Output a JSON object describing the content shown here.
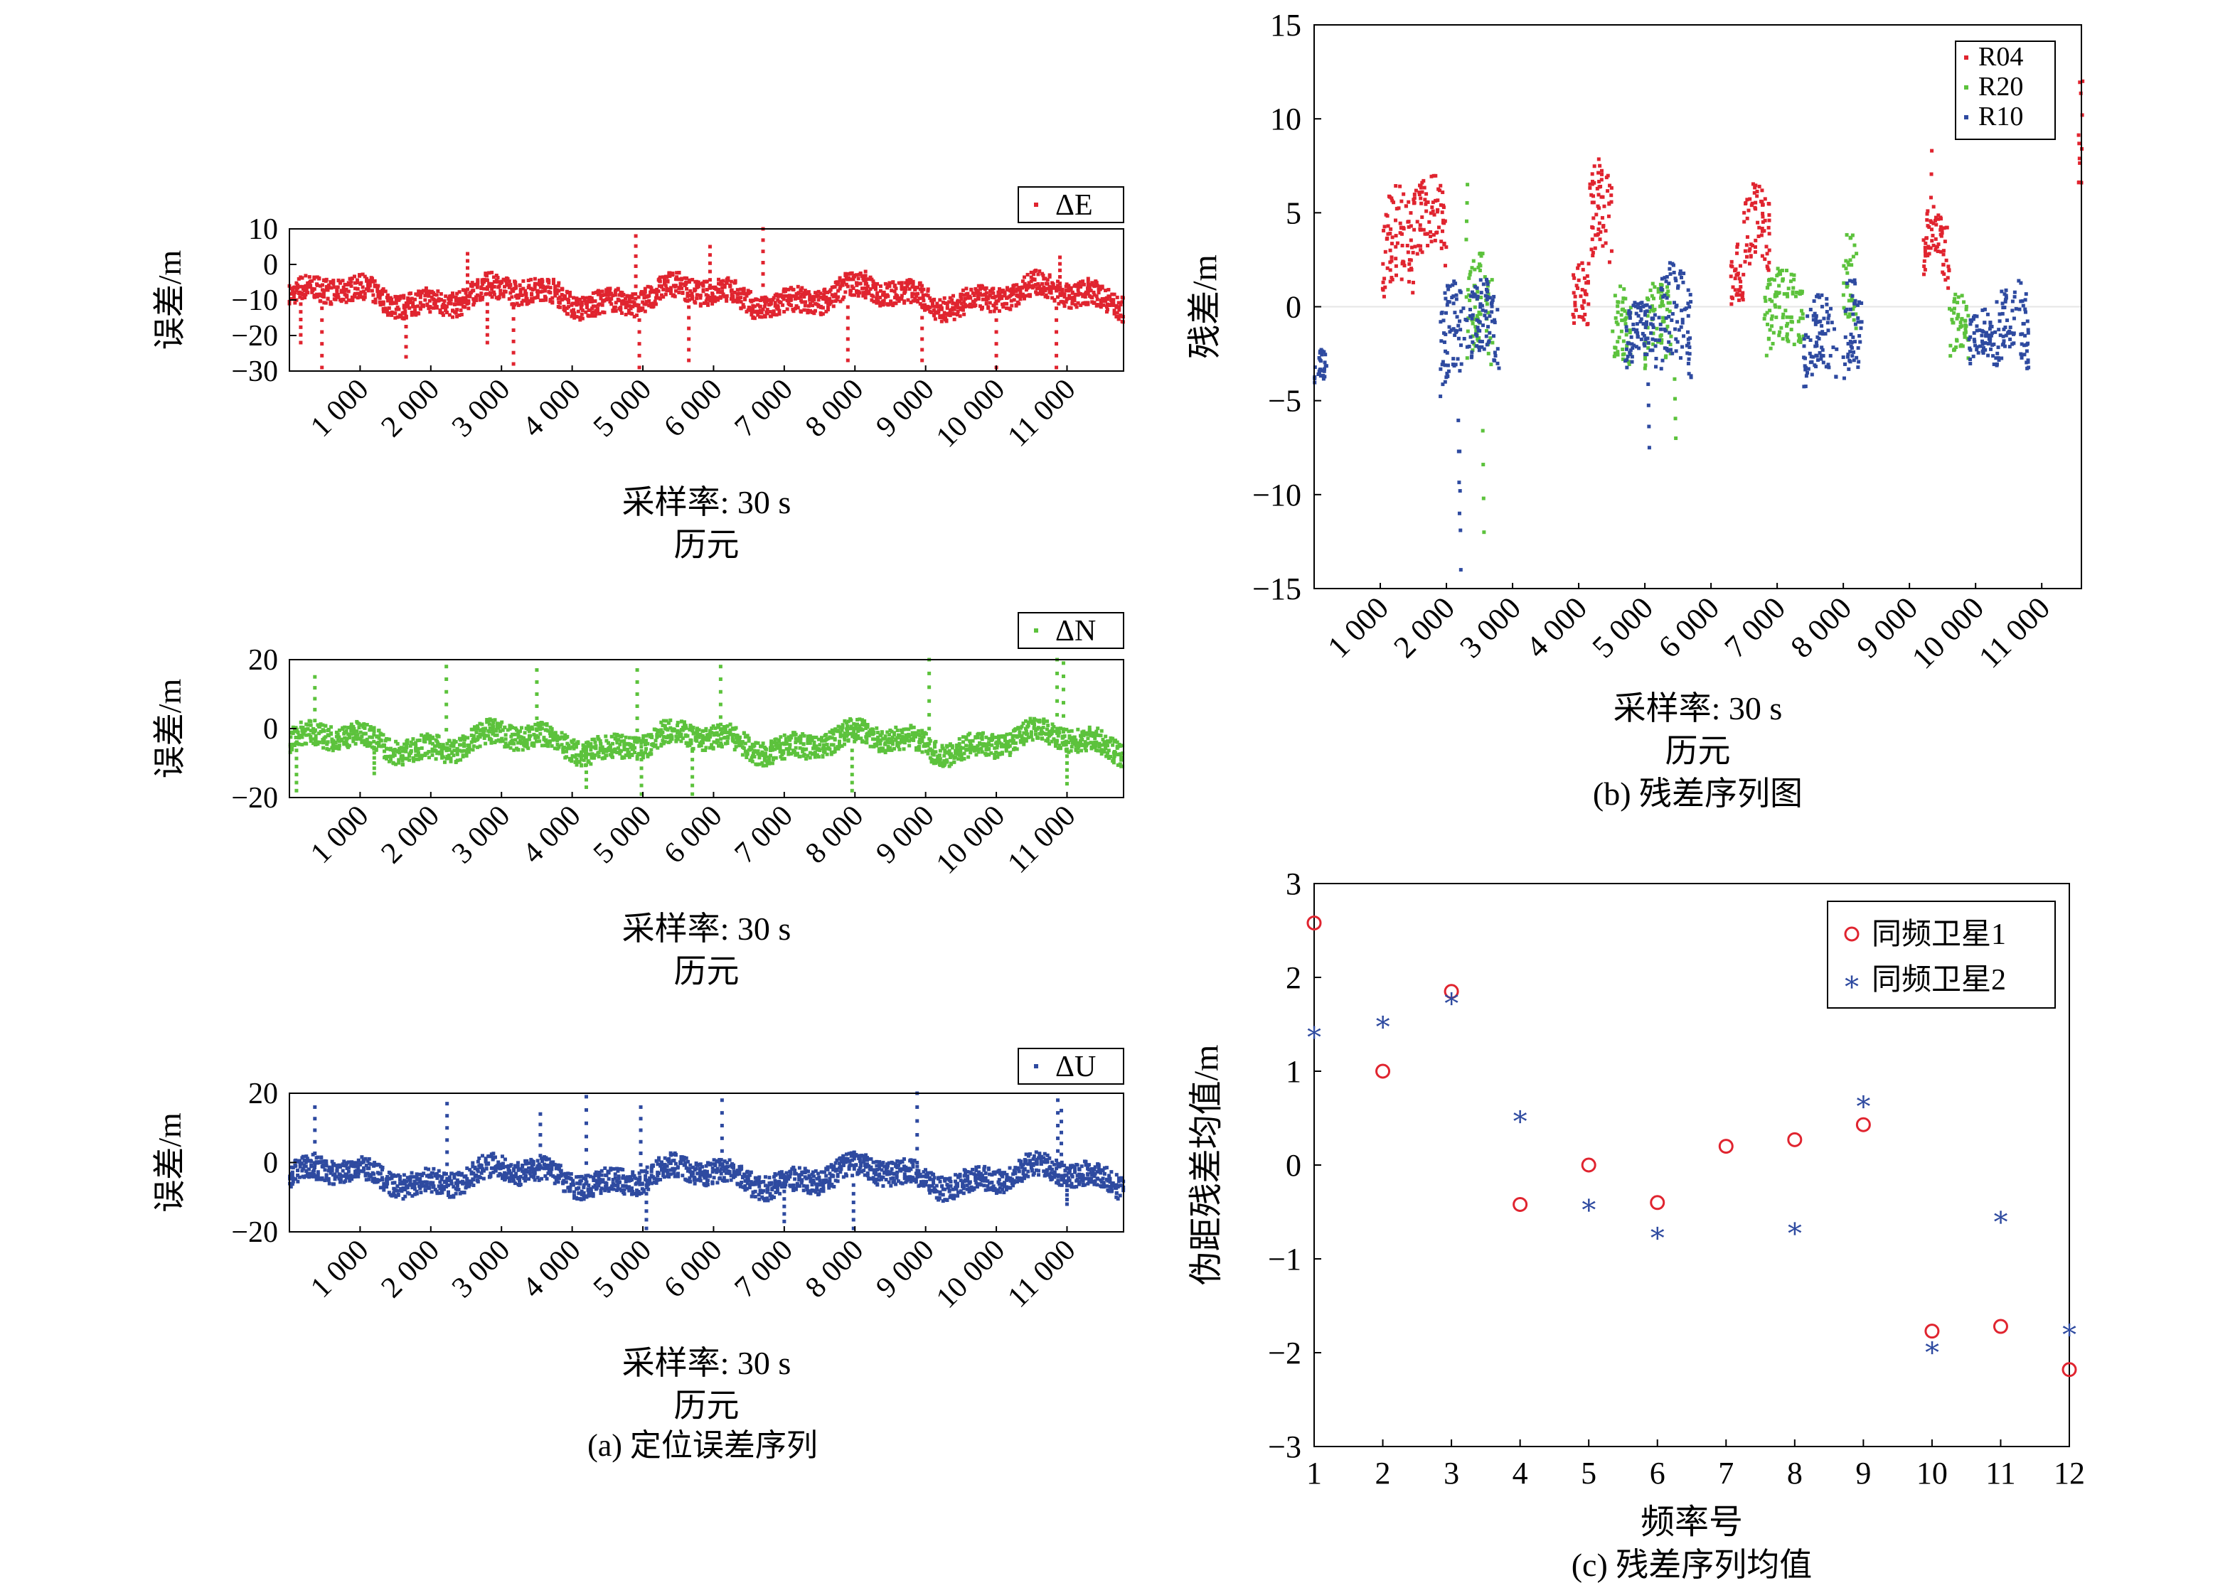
{
  "chart_data": [
    {
      "id": "dE",
      "type": "scatter",
      "ylabel": "误差/m",
      "xlabel_line1": "采样率: 30 s",
      "xlabel_line2": "历元",
      "xtick_labels": [
        "1 000",
        "2 000",
        "3 000",
        "4 000",
        "5 000",
        "6 000",
        "7 000",
        "8 000",
        "9 000",
        "10 000",
        "11 000"
      ],
      "ytick_labels": [
        "10",
        "0",
        "−10",
        "−20",
        "−30"
      ],
      "xlim": [
        0,
        11800
      ],
      "ylim": [
        -30,
        10
      ],
      "series": [
        {
          "name": "ΔE",
          "color": "#e0242f",
          "summary": {
            "baseline": -9,
            "spread": 3.5,
            "points": 700
          },
          "spikes": [
            [
              160,
              -22
            ],
            [
              460,
              -29
            ],
            [
              1650,
              -26
            ],
            [
              2520,
              3
            ],
            [
              2800,
              -22
            ],
            [
              4900,
              8
            ],
            [
              4950,
              -29
            ],
            [
              5650,
              -27
            ],
            [
              5950,
              5
            ],
            [
              6700,
              10
            ],
            [
              7900,
              -27
            ],
            [
              8150,
              -2
            ],
            [
              8950,
              -27
            ],
            [
              10000,
              -29
            ],
            [
              10850,
              -29
            ],
            [
              10900,
              2
            ],
            [
              11300,
              -4
            ],
            [
              3170,
              -28
            ]
          ]
        }
      ]
    },
    {
      "id": "dN",
      "type": "scatter",
      "ylabel": "误差/m",
      "xlabel_line1": "采样率: 30 s",
      "xlabel_line2": "历元",
      "xtick_labels": [
        "1 000",
        "2 000",
        "3 000",
        "4 000",
        "5 000",
        "6 000",
        "7 000",
        "8 000",
        "9 000",
        "10 000",
        "11 000"
      ],
      "ytick_labels": [
        "20",
        "0",
        "−20"
      ],
      "xlim": [
        0,
        11800
      ],
      "ylim": [
        -20,
        20
      ],
      "series": [
        {
          "name": "ΔN",
          "color": "#5cc23c",
          "summary": {
            "baseline": -4,
            "spread": 3.5,
            "points": 700
          },
          "spikes": [
            [
              100,
              -18
            ],
            [
              360,
              15
            ],
            [
              1200,
              -13
            ],
            [
              2220,
              18
            ],
            [
              3500,
              17
            ],
            [
              4200,
              -17
            ],
            [
              4920,
              17
            ],
            [
              4980,
              -19
            ],
            [
              5700,
              -19
            ],
            [
              6100,
              18
            ],
            [
              7960,
              -18
            ],
            [
              9050,
              20
            ],
            [
              10860,
              20
            ],
            [
              10950,
              19
            ],
            [
              11000,
              -16
            ]
          ]
        }
      ]
    },
    {
      "id": "dU",
      "type": "scatter",
      "ylabel": "误差/m",
      "xlabel_line1": "采样率: 30 s",
      "xlabel_line2": "历元",
      "xtick_labels": [
        "1 000",
        "2 000",
        "3 000",
        "4 000",
        "5 000",
        "6 000",
        "7 000",
        "8 000",
        "9 000",
        "10 000",
        "11 000"
      ],
      "ytick_labels": [
        "20",
        "0",
        "−20"
      ],
      "xlim": [
        0,
        11800
      ],
      "ylim": [
        -20,
        20
      ],
      "series": [
        {
          "name": "ΔU",
          "color": "#2e4aa0",
          "summary": {
            "baseline": -4,
            "spread": 3.5,
            "points": 700
          },
          "spikes": [
            [
              360,
              16
            ],
            [
              2230,
              17
            ],
            [
              3550,
              14
            ],
            [
              4200,
              19
            ],
            [
              4970,
              16
            ],
            [
              5050,
              -19
            ],
            [
              6120,
              18
            ],
            [
              7000,
              -17
            ],
            [
              7980,
              -19
            ],
            [
              8880,
              20
            ],
            [
              10870,
              18
            ],
            [
              10920,
              15
            ],
            [
              11000,
              -12
            ]
          ]
        }
      ]
    },
    {
      "id": "residual",
      "type": "scatter",
      "ylabel": "残差/m",
      "xlabel_line1": "采样率: 30 s",
      "xlabel_line2": "历元",
      "caption": "(b) 残差序列图",
      "xtick_labels": [
        "1 000",
        "2 000",
        "3 000",
        "4 000",
        "5 000",
        "6 000",
        "7 000",
        "8 000",
        "9 000",
        "10 000",
        "11 000"
      ],
      "ytick_labels": [
        "15",
        "10",
        "5",
        "0",
        "−5",
        "−10",
        "−15"
      ],
      "xlim": [
        0,
        11600
      ],
      "ylim": [
        -15,
        15
      ],
      "legend_position": "top-right",
      "series": [
        {
          "name": "R04",
          "color": "#e0242f",
          "segments": [
            [
              1000,
              1500,
              2.5,
              2.5
            ],
            [
              1500,
              2000,
              4.0,
              2.0
            ],
            [
              3900,
              4150,
              0.0,
              1.5
            ],
            [
              4150,
              4500,
              4.0,
              2.5
            ],
            [
              6300,
              6500,
              1.0,
              1.5
            ],
            [
              6500,
              6900,
              3.5,
              2.0
            ],
            [
              9200,
              9500,
              3.0,
              1.5
            ],
            [
              9500,
              9600,
              2.0,
              2.0
            ],
            [
              11550,
              11600,
              8.0,
              2.5
            ]
          ]
        },
        {
          "name": "R20",
          "color": "#5cc23c",
          "segments": [
            [
              2300,
              2700,
              -1.0,
              2.5
            ],
            [
              4500,
              4800,
              -2.0,
              2.0
            ],
            [
              5000,
              5400,
              -1.5,
              2.0
            ],
            [
              6800,
              7400,
              -1.0,
              2.0
            ],
            [
              8000,
              8200,
              0.5,
              2.5
            ],
            [
              9600,
              9900,
              -1.5,
              1.5
            ]
          ]
        },
        {
          "name": "R10",
          "color": "#2e4aa0",
          "segments": [
            [
              0,
              200,
              -3.5,
              0.8
            ],
            [
              1900,
              2300,
              -2.5,
              2.5
            ],
            [
              2300,
              2800,
              -1.5,
              2.0
            ],
            [
              4700,
              5200,
              -2.0,
              1.5
            ],
            [
              5200,
              5700,
              -1.5,
              2.5
            ],
            [
              7400,
              7900,
              -2.5,
              2.0
            ],
            [
              8000,
              8300,
              -2.0,
              2.5
            ],
            [
              9900,
              10300,
              -2.0,
              1.2
            ],
            [
              10300,
              10800,
              -1.5,
              2.0
            ]
          ]
        }
      ],
      "spikes": [
        {
          "series": "R10",
          "x": 2200,
          "y": -14
        },
        {
          "series": "R10",
          "x": 2180,
          "y": -11
        },
        {
          "series": "R20",
          "x": 2550,
          "y": -12
        },
        {
          "series": "R20",
          "x": 2300,
          "y": 6.5
        },
        {
          "series": "R04",
          "x": 4300,
          "y": 7.5
        },
        {
          "series": "R10",
          "x": 5050,
          "y": -7.5
        },
        {
          "series": "R20",
          "x": 5450,
          "y": -7
        },
        {
          "series": "R04",
          "x": 9320,
          "y": 8.3
        },
        {
          "series": "R04",
          "x": 11600,
          "y": 12
        }
      ]
    },
    {
      "id": "mean",
      "type": "scatter",
      "ylabel": "伪距残差均值/m",
      "xlabel": "频率号",
      "caption": "(c) 残差序列均值",
      "xlim": [
        1,
        12
      ],
      "ylim": [
        -3,
        3
      ],
      "xtick_labels": [
        "1",
        "2",
        "3",
        "4",
        "5",
        "6",
        "7",
        "8",
        "9",
        "10",
        "11",
        "12"
      ],
      "ytick_labels": [
        "3",
        "2",
        "1",
        "0",
        "−1",
        "−2",
        "−3"
      ],
      "legend_position": "top-right",
      "series": [
        {
          "name": "同频卫星1",
          "color": "#e0242f",
          "marker": "circle",
          "x": [
            1,
            2,
            3,
            4,
            5,
            6,
            7,
            8,
            9,
            10,
            11,
            12
          ],
          "values": [
            2.58,
            1.0,
            1.85,
            -0.42,
            0.0,
            -0.4,
            0.2,
            0.27,
            0.43,
            -1.77,
            -1.72,
            -2.18
          ]
        },
        {
          "name": "同频卫星2",
          "color": "#2e4aa0",
          "marker": "star",
          "x": [
            1,
            2,
            3,
            4,
            5,
            6,
            8,
            9,
            10,
            11,
            12
          ],
          "values": [
            1.44,
            1.55,
            1.8,
            0.54,
            -0.4,
            -0.7,
            -0.65,
            0.7,
            -1.92,
            -0.53,
            -1.73
          ]
        }
      ]
    }
  ],
  "captions": {
    "a": "(a) 定位误差序列",
    "b": "(b) 残差序列图",
    "c": "(c) 残差序列均值"
  }
}
